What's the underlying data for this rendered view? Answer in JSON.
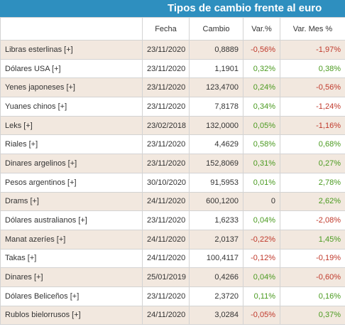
{
  "widget": {
    "title": "Tipos de cambio frente al euro",
    "columns": [
      "",
      "Fecha",
      "Cambio",
      "Var.%",
      "Var. Mes %"
    ],
    "rows": [
      {
        "name": "Libras esterlinas [+]",
        "date": "23/11/2020",
        "rate": "0,8889",
        "var": "-0,56%",
        "var_month": "-1,97%"
      },
      {
        "name": "Dólares USA [+]",
        "date": "23/11/2020",
        "rate": "1,1901",
        "var": "0,32%",
        "var_month": "0,38%"
      },
      {
        "name": "Yenes japoneses [+]",
        "date": "23/11/2020",
        "rate": "123,4700",
        "var": "0,24%",
        "var_month": "-0,56%"
      },
      {
        "name": "Yuanes chinos [+]",
        "date": "23/11/2020",
        "rate": "7,8178",
        "var": "0,34%",
        "var_month": "-1,24%"
      },
      {
        "name": "Leks [+]",
        "date": "23/02/2018",
        "rate": "132,0000",
        "var": "0,05%",
        "var_month": "-1,16%"
      },
      {
        "name": "Riales [+]",
        "date": "23/11/2020",
        "rate": "4,4629",
        "var": "0,58%",
        "var_month": "0,68%"
      },
      {
        "name": "Dinares argelinos [+]",
        "date": "23/11/2020",
        "rate": "152,8069",
        "var": "0,31%",
        "var_month": "0,27%"
      },
      {
        "name": "Pesos argentinos [+]",
        "date": "30/10/2020",
        "rate": "91,5953",
        "var": "0,01%",
        "var_month": "2,78%"
      },
      {
        "name": "Drams [+]",
        "date": "24/11/2020",
        "rate": "600,1200",
        "var": "0",
        "var_month": "2,62%"
      },
      {
        "name": "Dólares australianos [+]",
        "date": "23/11/2020",
        "rate": "1,6233",
        "var": "0,04%",
        "var_month": "-2,08%"
      },
      {
        "name": "Manat azeríes [+]",
        "date": "24/11/2020",
        "rate": "2,0137",
        "var": "-0,22%",
        "var_month": "1,45%"
      },
      {
        "name": "Takas [+]",
        "date": "24/11/2020",
        "rate": "100,4117",
        "var": "-0,12%",
        "var_month": "-0,19%"
      },
      {
        "name": "Dinares [+]",
        "date": "25/01/2019",
        "rate": "0,4266",
        "var": "0,04%",
        "var_month": "-0,60%"
      },
      {
        "name": "Dólares Beliceños [+]",
        "date": "23/11/2020",
        "rate": "2,3720",
        "var": "0,11%",
        "var_month": "0,16%"
      },
      {
        "name": "Rublos bielorrusos [+]",
        "date": "24/11/2020",
        "rate": "3,0284",
        "var": "-0,05%",
        "var_month": "0,37%"
      }
    ]
  },
  "colors": {
    "title_bar": "#2e8fbf",
    "row_alt": "#f2e8df",
    "positive": "#4a9a1f",
    "negative": "#c0392b"
  }
}
